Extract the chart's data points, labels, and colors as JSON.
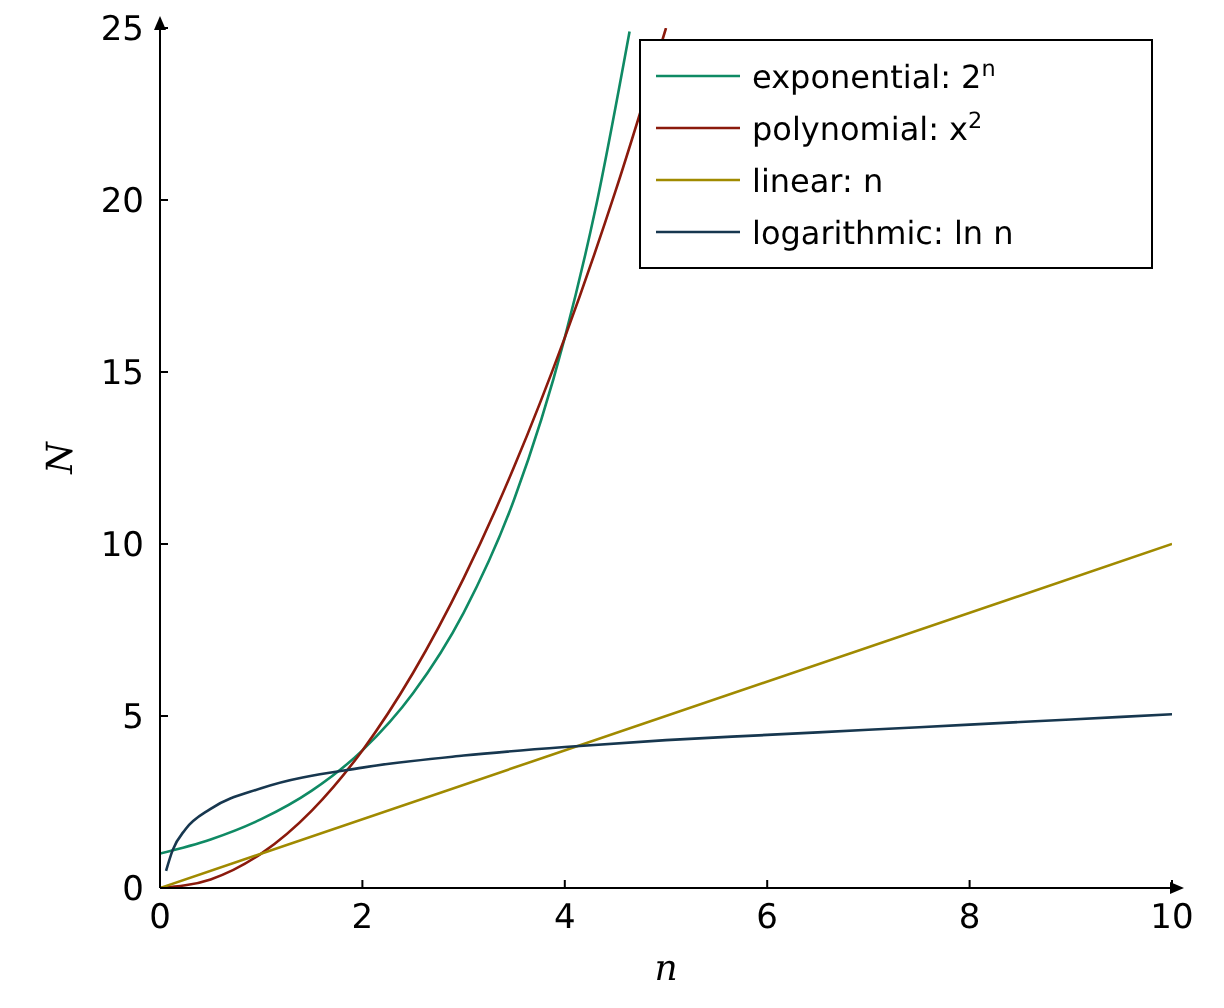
{
  "chart_data": {
    "type": "line",
    "xlabel": "n",
    "ylabel": "N",
    "xlim": [
      0,
      10
    ],
    "ylim": [
      0,
      25
    ],
    "xticks": [
      0,
      2,
      4,
      6,
      8,
      10
    ],
    "yticks": [
      0,
      5,
      10,
      15,
      20,
      25
    ],
    "grid": false,
    "legend": "top right",
    "line_style": "solid",
    "series": [
      {
        "name": "exponential: 2$^{n}$",
        "color": "#0f8a64",
        "x": [
          0,
          0.5,
          1,
          1.5,
          2,
          2.5,
          3,
          3.5,
          4,
          4.3,
          4.64
        ],
        "values": [
          1,
          1.41,
          2,
          2.83,
          4,
          5.66,
          8,
          11.3,
          16,
          19.7,
          24.9
        ]
      },
      {
        "name": "polynomial: x$^{2}$",
        "color": "#8b1a0c",
        "x": [
          0,
          0.5,
          1,
          1.5,
          2,
          2.5,
          3,
          3.5,
          4,
          4.5,
          5
        ],
        "values": [
          0,
          0.25,
          1,
          2.25,
          4,
          6.25,
          9,
          12.25,
          16,
          20.25,
          25
        ]
      },
      {
        "name": "linear: n",
        "color": "#a08a00",
        "x": [
          0,
          10
        ],
        "values": [
          0,
          10
        ]
      },
      {
        "name": "logarithmic: ln n",
        "color": "#17374f",
        "x": [
          0.06,
          0.125,
          0.25,
          0.5,
          1,
          2,
          3,
          4,
          5,
          6,
          7,
          8,
          9,
          10
        ],
        "values": [
          0.5,
          1.1,
          1.7,
          2.3,
          2.9,
          3.5,
          3.85,
          4.1,
          4.3,
          4.45,
          4.6,
          4.75,
          4.9,
          5.05
        ]
      }
    ]
  }
}
